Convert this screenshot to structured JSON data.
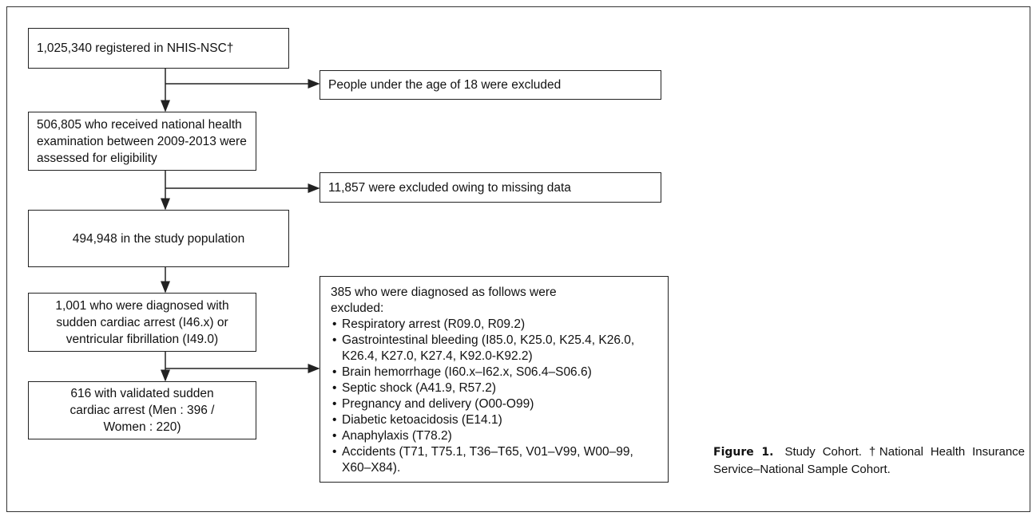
{
  "flow": {
    "boxes": [
      {
        "text": "1,025,340 registered in NHIS-NSC†"
      },
      {
        "text": "506,805 who received national health examination between 2009-2013 were assessed for eligibility"
      },
      {
        "text": "494,948 in the study population"
      },
      {
        "text": "1,001 who were diagnosed with sudden cardiac arrest (I46.x) or ventricular fibrillation (I49.0)"
      },
      {
        "text": "616 with validated sudden cardiac arrest (Men : 396 / Women : 220)"
      }
    ],
    "exclusions": [
      {
        "text": "People under the age of 18 were excluded"
      },
      {
        "text": "11,857 were excluded owing to missing data"
      }
    ],
    "diagnoses": {
      "title": "385 who were diagnosed as follows were excluded:",
      "items": [
        "Respiratory arrest (R09.0, R09.2)",
        "Gastrointestinal bleeding (I85.0, K25.0, K25.4, K26.0, K26.4, K27.0, K27.4, K92.0-K92.2)",
        "Brain hemorrhage (I60.x–I62.x, S06.4–S06.6)",
        "Septic shock (A41.9, R57.2)",
        "Pregnancy and delivery (O00-O99)",
        "Diabetic ketoacidosis (E14.1)",
        "Anaphylaxis (T78.2)",
        "Accidents (T71, T75.1, T36–T65, V01–V99, W00–99, X60–X84)."
      ]
    }
  },
  "caption": {
    "label": "Figure 1.",
    "text": "Study Cohort. †National Health Insurance Service–National Sample Cohort."
  }
}
